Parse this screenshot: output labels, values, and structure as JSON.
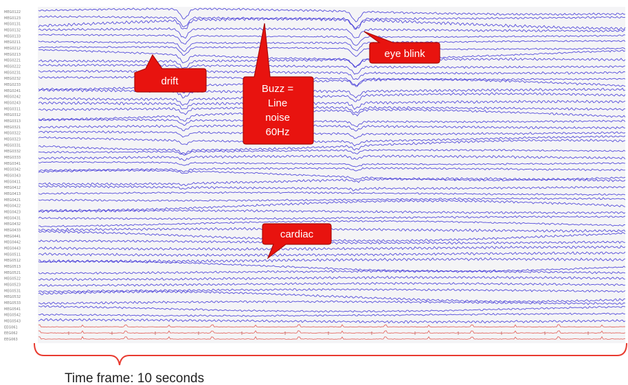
{
  "channel_labels": [
    "MEG0122",
    "MEG0123",
    "MEG0131",
    "MEG0132",
    "MEG0133",
    "MEG0211",
    "MEG0212",
    "MEG0213",
    "MEG0221",
    "MEG0222",
    "MEG0231",
    "MEG0232",
    "MEG0233",
    "MEG0241",
    "MEG0242",
    "MEG0243",
    "MEG0311",
    "MEG0312",
    "MEG0313",
    "MEG0321",
    "MEG0322",
    "MEG0323",
    "MEG0331",
    "MEG0332",
    "MEG0333",
    "MEG0341",
    "MEG0342",
    "MEG0343",
    "MEG0411",
    "MEG0412",
    "MEG0413",
    "MEG0421",
    "MEG0422",
    "MEG0423",
    "MEG0431",
    "MEG0432",
    "MEG0433",
    "MEG0441",
    "MEG0442",
    "MEG0443",
    "MEG0511",
    "MEG0512",
    "MEG0513",
    "MEG0521",
    "MEG0522",
    "MEG0523",
    "MEG0531",
    "MEG0532",
    "MEG0533",
    "MEG0541",
    "MEG0542",
    "MEG0543",
    "EEG061",
    "EEG062",
    "EEG063"
  ],
  "annotations": {
    "drift": "drift",
    "buzz_line1": "Buzz =",
    "buzz_line2": "Line",
    "buzz_line3": "noise",
    "buzz_line4": "60Hz",
    "eye_blink": "eye blink",
    "cardiac": "cardiac"
  },
  "caption": "Time frame: 10 seconds",
  "colors": {
    "meg_trace": "#3a2fd6",
    "eeg_trace": "#e0473f",
    "callout_fill": "#e8130f",
    "callout_stroke": "#a80c08",
    "bracket": "#e83a2f",
    "plot_bg": "#f4f4f6"
  }
}
